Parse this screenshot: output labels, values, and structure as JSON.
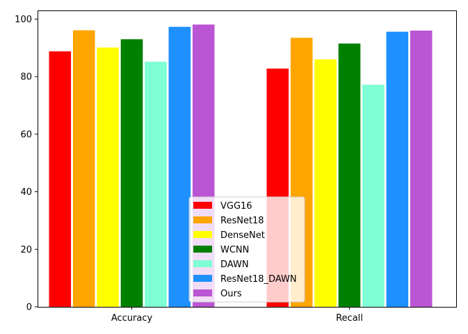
{
  "chart_data": {
    "type": "bar",
    "categories": [
      "Accuracy",
      "Recall"
    ],
    "series": [
      {
        "name": "VGG16",
        "color": "#ff0000",
        "values": [
          88.8,
          82.8
        ]
      },
      {
        "name": "ResNet18",
        "color": "#ffa500",
        "values": [
          96.1,
          93.5
        ]
      },
      {
        "name": "DenseNet",
        "color": "#ffff00",
        "values": [
          90.1,
          86.0
        ]
      },
      {
        "name": "WCNN",
        "color": "#008000",
        "values": [
          93.0,
          91.5
        ]
      },
      {
        "name": "DAWN",
        "color": "#7fffd4",
        "values": [
          85.2,
          77.2
        ]
      },
      {
        "name": "ResNet18_DAWN",
        "color": "#1e90ff",
        "values": [
          97.3,
          95.6
        ]
      },
      {
        "name": "Ours",
        "color": "#ba55d3",
        "values": [
          98.1,
          96.0
        ]
      }
    ],
    "ylim": [
      0,
      103
    ],
    "yticks": [
      0,
      20,
      40,
      60,
      80,
      100
    ],
    "ytick_labels": [
      "0",
      "20",
      "40",
      "60",
      "80",
      "100"
    ],
    "grid": false,
    "legend_position": "lower center"
  }
}
